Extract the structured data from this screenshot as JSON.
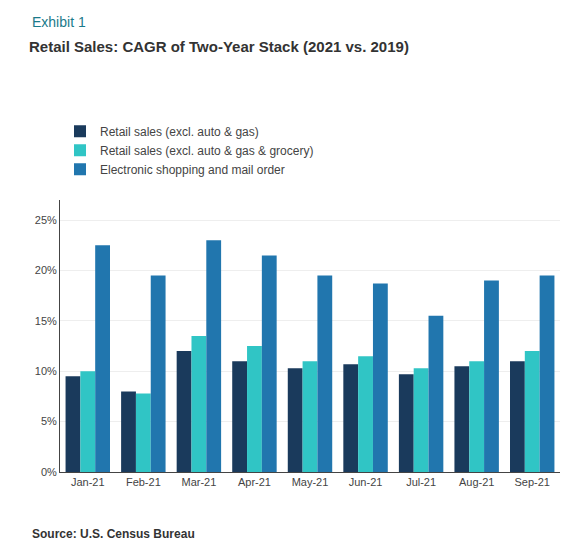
{
  "chart_data": {
    "type": "bar",
    "title": "Retail Sales: CAGR of Two-Year Stack (2021 vs. 2019)",
    "annotations": [
      "Exhibit 1",
      "Source: U.S. Census Bureau"
    ],
    "categories": [
      "Jan-21",
      "Feb-21",
      "Mar-21",
      "Apr-21",
      "May-21",
      "Jun-21",
      "Jul-21",
      "Aug-21",
      "Sep-21"
    ],
    "series": [
      {
        "name": "Retail sales (excl. auto & gas)",
        "color": "#1a3a5c",
        "values": [
          9.5,
          8.0,
          12.0,
          11.0,
          10.3,
          10.7,
          9.7,
          10.5,
          11.0
        ]
      },
      {
        "name": "Retail sales (excl. auto & gas & grocery)",
        "color": "#30c5c5",
        "values": [
          10.0,
          7.8,
          13.5,
          12.5,
          11.0,
          11.5,
          10.3,
          11.0,
          12.0
        ]
      },
      {
        "name": "Electronic shopping and mail order",
        "color": "#2176ae",
        "values": [
          22.5,
          19.5,
          23.0,
          21.5,
          19.5,
          18.7,
          15.5,
          19.0,
          19.5
        ]
      }
    ],
    "ylim": [
      0,
      27
    ],
    "yticks": [
      {
        "value": 0,
        "label": "0%"
      },
      {
        "value": 5,
        "label": "5%"
      },
      {
        "value": 10,
        "label": "10%"
      },
      {
        "value": 15,
        "label": "15%"
      },
      {
        "value": 20,
        "label": "20%"
      },
      {
        "value": 25,
        "label": "25%"
      }
    ],
    "grid": true,
    "legend": "top left"
  }
}
